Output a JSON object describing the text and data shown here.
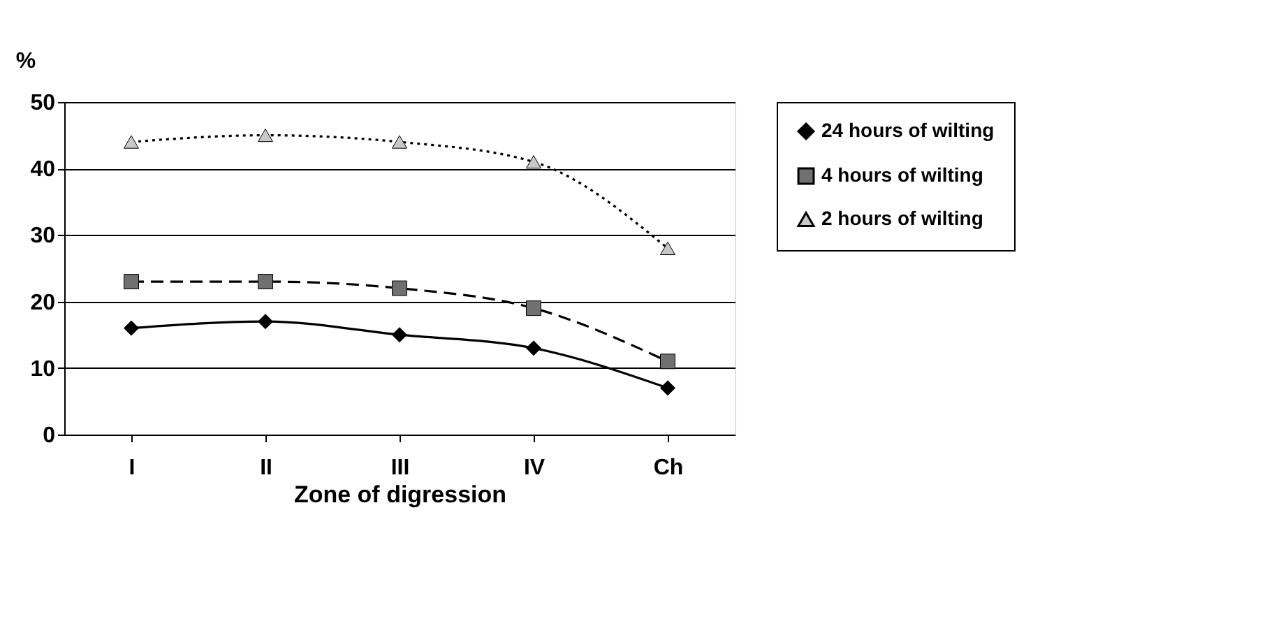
{
  "chart_data": {
    "type": "line",
    "xlabel": "Zone of digression",
    "ylabel": "%",
    "categories": [
      "I",
      "II",
      "III",
      "IV",
      "Ch"
    ],
    "series": [
      {
        "name": "24 hours of wilting",
        "color": "#000000",
        "marker": "diamond",
        "line_style": "solid",
        "values": [
          16,
          17,
          15,
          13,
          7
        ]
      },
      {
        "name": "4 hours of wilting",
        "color": "#707070",
        "marker": "square",
        "line_style": "dashed",
        "values": [
          23,
          23,
          22,
          19,
          11
        ]
      },
      {
        "name": "2 hours of wilting",
        "color": "#c8c8c8",
        "marker": "triangle",
        "line_style": "dotted",
        "values": [
          44,
          45,
          44,
          41,
          28
        ]
      }
    ],
    "ylim": [
      0,
      50
    ],
    "yticks": [
      0,
      10,
      20,
      30,
      40,
      50
    ],
    "grid": "y",
    "legend": "right"
  }
}
